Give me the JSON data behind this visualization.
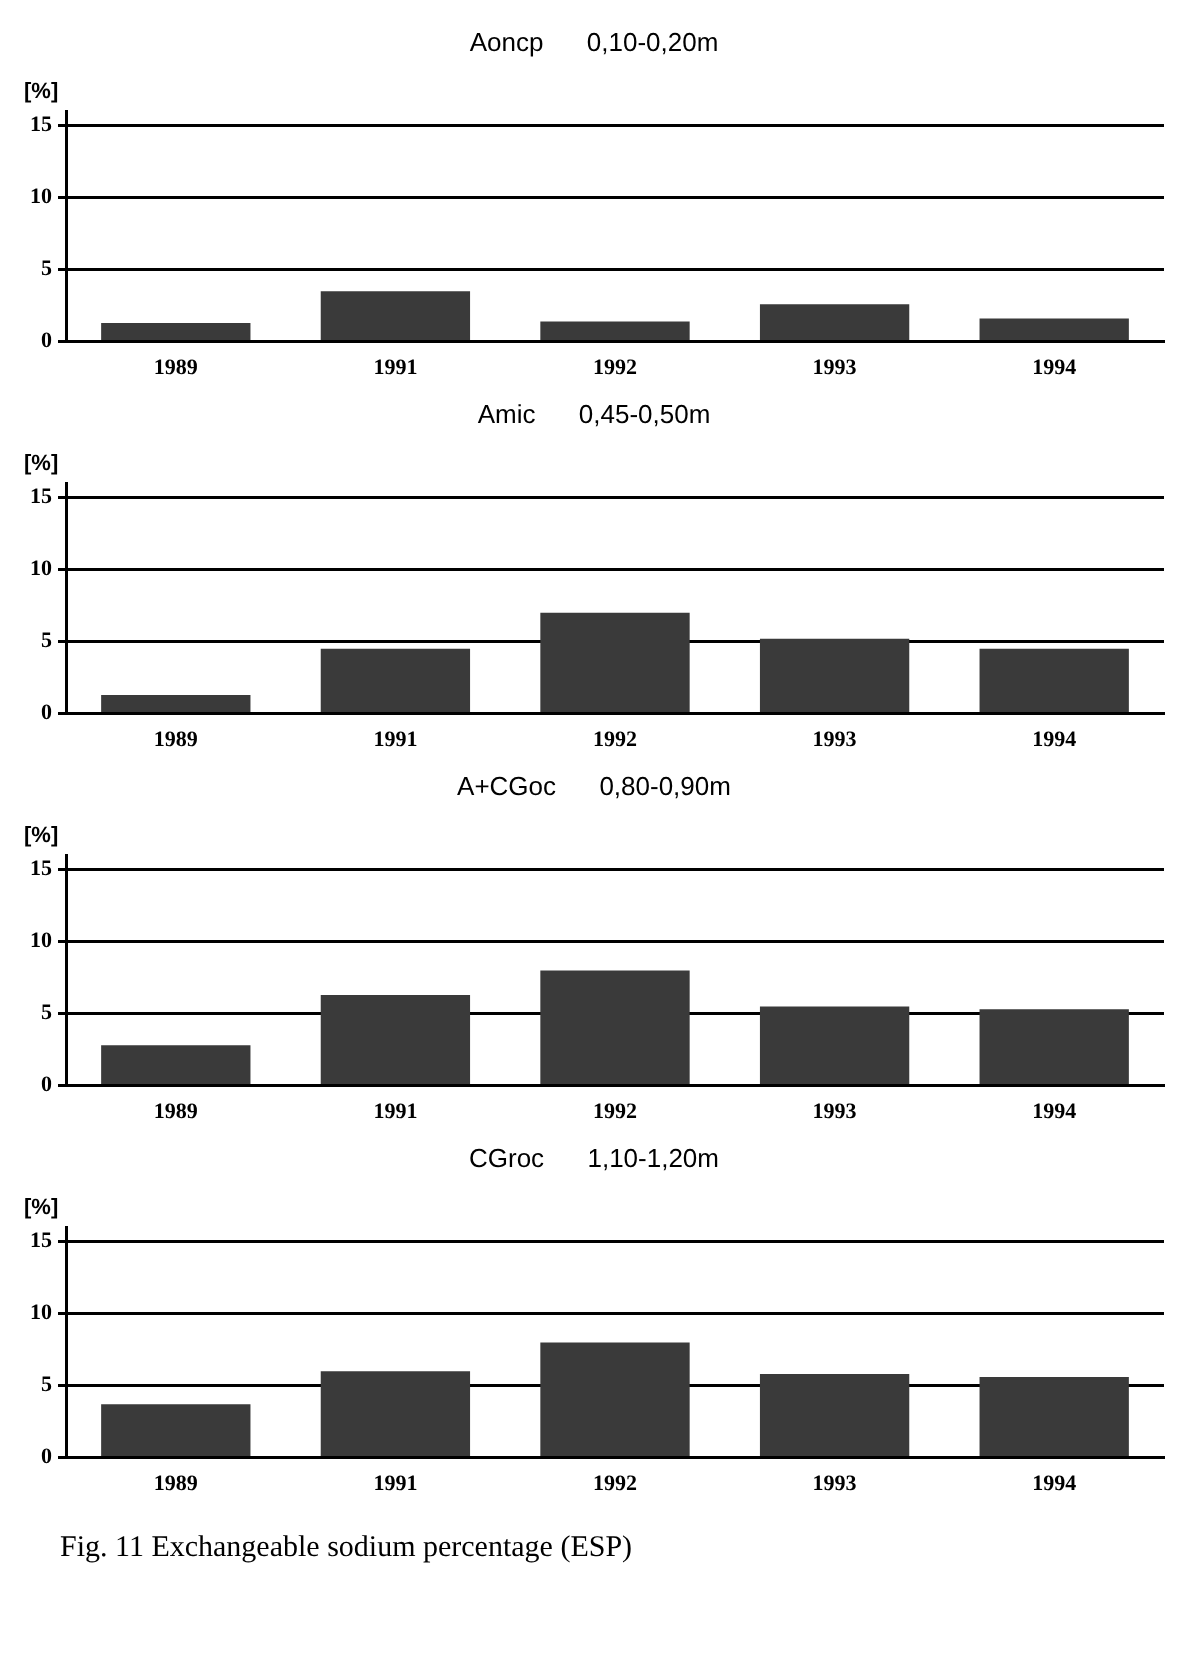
{
  "chart_data": [
    {
      "type": "bar",
      "title": "Aoncp      0,10-0,20m",
      "ylabel": "[%]",
      "categories": [
        "1989",
        "1991",
        "1992",
        "1993",
        "1994"
      ],
      "values": [
        1.3,
        3.5,
        1.4,
        2.6,
        1.6
      ],
      "color": "#3a3a3a",
      "ylim": [
        0,
        16
      ],
      "yticks": [
        0,
        5,
        10,
        15
      ],
      "grid": "y"
    },
    {
      "type": "bar",
      "title": "Amic      0,45-0,50m",
      "ylabel": "[%]",
      "categories": [
        "1989",
        "1991",
        "1992",
        "1993",
        "1994"
      ],
      "values": [
        1.3,
        4.5,
        7,
        5.2,
        4.5
      ],
      "color": "#3a3a3a",
      "ylim": [
        0,
        16
      ],
      "yticks": [
        0,
        5,
        10,
        15
      ],
      "grid": "y"
    },
    {
      "type": "bar",
      "title": "A+CGoc      0,80-0,90m",
      "ylabel": "[%]",
      "categories": [
        "1989",
        "1991",
        "1992",
        "1993",
        "1994"
      ],
      "values": [
        2.8,
        6.3,
        8,
        5.5,
        5.3
      ],
      "color": "#3a3a3a",
      "ylim": [
        0,
        16
      ],
      "yticks": [
        0,
        5,
        10,
        15
      ],
      "grid": "y"
    },
    {
      "type": "bar",
      "title": "CGroc      1,10-1,20m",
      "ylabel": "[%]",
      "categories": [
        "1989",
        "1991",
        "1992",
        "1993",
        "1994"
      ],
      "values": [
        3.7,
        6,
        8,
        5.8,
        5.6
      ],
      "color": "#3a3a3a",
      "ylim": [
        0,
        16
      ],
      "yticks": [
        0,
        5,
        10,
        15
      ],
      "grid": "y",
      "annotations": [
        "Fig. 11 Exchangeable sodium percentage (ESP)"
      ]
    }
  ]
}
